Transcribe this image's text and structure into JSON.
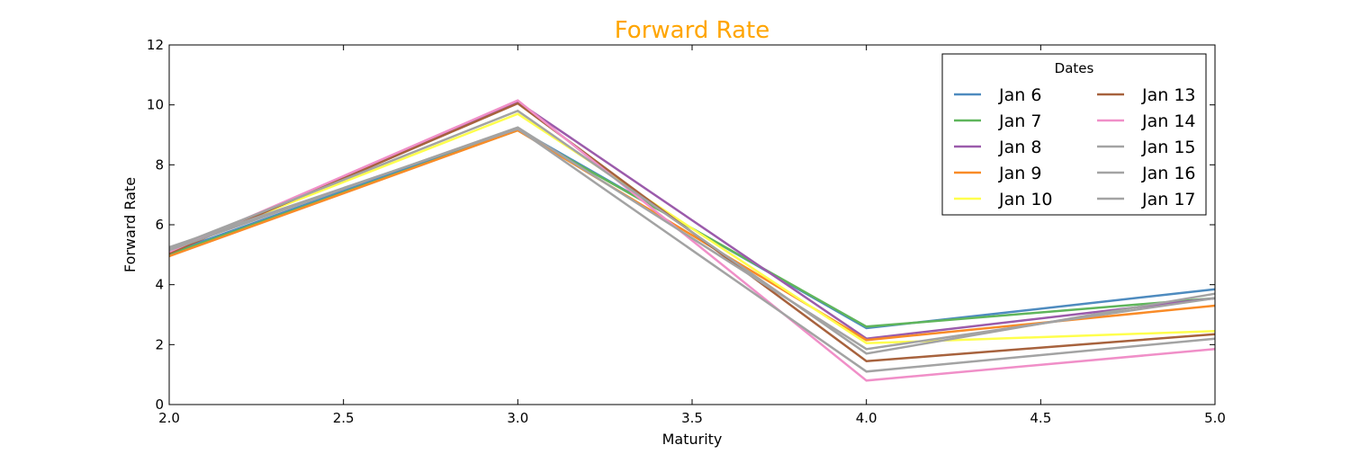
{
  "chart_data": {
    "type": "line",
    "title": "Forward Rate",
    "title_color": "#ffa500",
    "xlabel": "Maturity",
    "ylabel": "Forward Rate",
    "xlim": [
      2.0,
      5.0
    ],
    "ylim": [
      0,
      12
    ],
    "xticks": [
      2.0,
      2.5,
      3.0,
      3.5,
      4.0,
      4.5,
      5.0
    ],
    "xtick_labels": [
      "2.0",
      "2.5",
      "3.0",
      "3.5",
      "4.0",
      "4.5",
      "5.0"
    ],
    "yticks": [
      0,
      2,
      4,
      6,
      8,
      10,
      12
    ],
    "ytick_labels": [
      "0",
      "2",
      "4",
      "6",
      "8",
      "10",
      "12"
    ],
    "grid": false,
    "legend": {
      "title": "Dates",
      "placement": "top-right",
      "columns": 2
    },
    "x": [
      2.0,
      3.0,
      4.0,
      5.0
    ],
    "series": [
      {
        "name": "Jan 6",
        "color": "#4e8bbf",
        "values": [
          5.05,
          9.2,
          2.55,
          3.85
        ]
      },
      {
        "name": "Jan 7",
        "color": "#5fb55b",
        "values": [
          5.0,
          9.15,
          2.6,
          3.55
        ]
      },
      {
        "name": "Jan 8",
        "color": "#9b5bab",
        "values": [
          5.1,
          10.1,
          2.2,
          3.55
        ]
      },
      {
        "name": "Jan 9",
        "color": "#f98b27",
        "values": [
          4.95,
          9.15,
          2.15,
          3.3
        ]
      },
      {
        "name": "Jan 10",
        "color": "#ffff4d",
        "values": [
          5.15,
          9.7,
          2.05,
          2.45
        ]
      },
      {
        "name": "Jan 13",
        "color": "#a7623d",
        "values": [
          5.05,
          10.05,
          1.45,
          2.35
        ]
      },
      {
        "name": "Jan 14",
        "color": "#f08fc8",
        "values": [
          5.1,
          10.15,
          0.8,
          1.85
        ]
      },
      {
        "name": "Jan 15",
        "color": "#a3a3a3",
        "values": [
          5.2,
          9.8,
          1.7,
          3.7
        ]
      },
      {
        "name": "Jan 16",
        "color": "#a3a3a3",
        "values": [
          5.15,
          9.25,
          1.85,
          3.55
        ]
      },
      {
        "name": "Jan 17",
        "color": "#a3a3a3",
        "values": [
          5.25,
          9.2,
          1.1,
          2.2
        ]
      }
    ]
  }
}
